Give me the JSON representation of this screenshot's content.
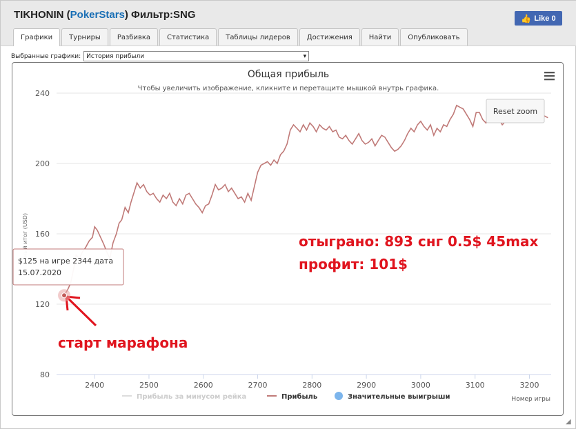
{
  "window": {
    "title_player": "TIKHONIN (",
    "title_site": "PokerStars",
    "title_filter": ") Фильтр:SNG",
    "like_label": "Like 0"
  },
  "tabs": [
    {
      "label": "Графики",
      "active": true
    },
    {
      "label": "Турниры"
    },
    {
      "label": "Разбивка"
    },
    {
      "label": "Статистика"
    },
    {
      "label": "Таблицы лидеров"
    },
    {
      "label": "Достижения"
    },
    {
      "label": "Найти"
    },
    {
      "label": "Опубликовать"
    }
  ],
  "selector": {
    "label": "Выбранные графики:",
    "value": "История прибыли"
  },
  "chart": {
    "title": "Общая прибыль",
    "subtitle": "Чтобы увеличить изображение, кликните и перетащите мышкой внутрь графика.",
    "reset_zoom": "Reset zoom",
    "tooltip_line1": "$125 на игре 2344 дата",
    "tooltip_line2": "15.07.2020",
    "legend": [
      "Прибыль за минусом рейка",
      "Прибыль",
      "Значительные выигрыши"
    ],
    "xlabel": "Номер игры",
    "ylabel": "ный итог (USD)",
    "annotation_stats_1": "отыграно: 893 снг 0.5$ 45max",
    "annotation_stats_2": "профит: 101$",
    "annotation_start": "старт марафона",
    "colors": {
      "line": "#c07a78",
      "grid": "#e6e6e6",
      "annotation": "#e0141e",
      "highlight": "#7cb5ec"
    }
  },
  "chart_data": {
    "type": "line",
    "title": "Общая прибыль",
    "xlabel": "Номер игры",
    "ylabel": "ный итог (USD)",
    "xlim": [
      2330,
      3240
    ],
    "ylim": [
      80,
      240
    ],
    "x_ticks": [
      2400,
      2500,
      2600,
      2700,
      2800,
      2900,
      3000,
      3100,
      3200
    ],
    "y_ticks": [
      80,
      120,
      160,
      200,
      240
    ],
    "grid": true,
    "legend_position": "bottom",
    "series": [
      {
        "name": "Прибыль",
        "x": [
          2344,
          2350,
          2356,
          2362,
          2366,
          2372,
          2378,
          2383,
          2390,
          2396,
          2400,
          2405,
          2411,
          2417,
          2422,
          2428,
          2434,
          2440,
          2445,
          2450,
          2456,
          2462,
          2467,
          2473,
          2478,
          2484,
          2490,
          2496,
          2502,
          2508,
          2514,
          2520,
          2526,
          2532,
          2538,
          2544,
          2550,
          2556,
          2562,
          2568,
          2574,
          2580,
          2586,
          2592,
          2598,
          2604,
          2610,
          2616,
          2622,
          2628,
          2634,
          2640,
          2646,
          2652,
          2658,
          2664,
          2670,
          2676,
          2682,
          2688,
          2694,
          2700,
          2706,
          2712,
          2718,
          2724,
          2730,
          2736,
          2742,
          2748,
          2754,
          2760,
          2766,
          2772,
          2778,
          2784,
          2790,
          2796,
          2802,
          2808,
          2814,
          2820,
          2826,
          2832,
          2838,
          2844,
          2850,
          2856,
          2862,
          2868,
          2874,
          2880,
          2886,
          2892,
          2898,
          2904,
          2910,
          2916,
          2922,
          2928,
          2934,
          2940,
          2946,
          2952,
          2958,
          2964,
          2970,
          2976,
          2982,
          2988,
          2994,
          3000,
          3006,
          3012,
          3018,
          3024,
          3030,
          3036,
          3042,
          3048,
          3054,
          3060,
          3066,
          3072,
          3078,
          3084,
          3090,
          3096,
          3102,
          3108,
          3114,
          3120,
          3126,
          3132,
          3138,
          3144,
          3150,
          3156,
          3162,
          3168,
          3174,
          3180,
          3186,
          3192,
          3198,
          3204,
          3210,
          3216,
          3222,
          3228,
          3234
        ],
        "y": [
          125,
          128,
          132,
          141,
          148,
          146,
          150,
          152,
          156,
          158,
          164,
          162,
          158,
          154,
          150,
          146,
          155,
          160,
          166,
          168,
          175,
          172,
          178,
          184,
          189,
          186,
          188,
          184,
          182,
          183,
          180,
          178,
          182,
          180,
          183,
          178,
          176,
          180,
          177,
          182,
          183,
          180,
          177,
          175,
          172,
          176,
          177,
          182,
          188,
          185,
          186,
          188,
          184,
          186,
          183,
          180,
          181,
          178,
          183,
          179,
          187,
          195,
          199,
          200,
          201,
          199,
          202,
          200,
          205,
          207,
          211,
          219,
          222,
          220,
          218,
          222,
          219,
          223,
          221,
          218,
          222,
          220,
          219,
          221,
          218,
          219,
          215,
          214,
          216,
          213,
          211,
          214,
          217,
          213,
          211,
          212,
          214,
          210,
          213,
          216,
          215,
          212,
          209,
          207,
          208,
          210,
          213,
          217,
          220,
          218,
          222,
          224,
          221,
          219,
          222,
          216,
          220,
          218,
          222,
          221,
          225,
          228,
          233,
          232,
          231,
          228,
          225,
          221,
          229,
          229,
          225,
          223,
          229,
          226,
          228,
          225,
          222,
          224,
          226,
          224,
          227,
          230,
          232,
          229,
          227,
          226,
          228,
          226,
          224,
          227,
          226
        ]
      }
    ],
    "annotations": [
      {
        "text": "$125 на игре 2344 дата 15.07.2020",
        "x": 2344,
        "y": 125
      }
    ]
  }
}
